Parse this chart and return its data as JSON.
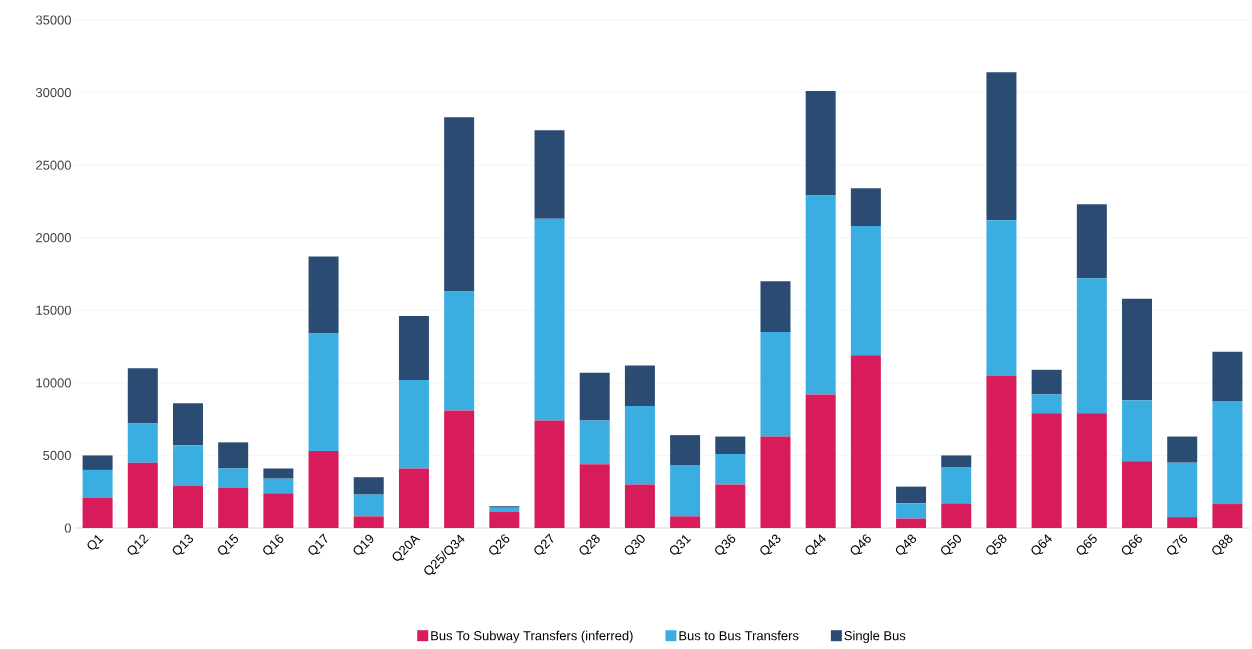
{
  "chart_data": {
    "type": "bar",
    "stacked": true,
    "categories": [
      "Q1",
      "Q12",
      "Q13",
      "Q15",
      "Q16",
      "Q17",
      "Q19",
      "Q20A",
      "Q25/Q34",
      "Q26",
      "Q27",
      "Q28",
      "Q30",
      "Q31",
      "Q36",
      "Q43",
      "Q44",
      "Q46",
      "Q48",
      "Q50",
      "Q58",
      "Q64",
      "Q65",
      "Q66",
      "Q76",
      "Q88"
    ],
    "series": [
      {
        "name": "Bus To Subway Transfers (inferred)",
        "color": "#d81b5a",
        "values": [
          2100,
          4500,
          2900,
          2750,
          2400,
          5300,
          800,
          4100,
          8100,
          1100,
          7400,
          4400,
          3000,
          800,
          3000,
          6300,
          9200,
          11900,
          650,
          1700,
          10500,
          7900,
          7900,
          4600,
          750,
          1650
        ]
      },
      {
        "name": "Bus to Bus Transfers",
        "color": "#3aaee0",
        "values": [
          1900,
          2700,
          2800,
          1350,
          1000,
          8100,
          1500,
          6100,
          8200,
          300,
          13900,
          3000,
          5400,
          3500,
          2100,
          7200,
          13700,
          8900,
          1050,
          2500,
          10700,
          1300,
          9300,
          4200,
          3750,
          7100
        ]
      },
      {
        "name": "Single Bus",
        "color": "#2b4c72",
        "values": [
          1000,
          3800,
          2900,
          1800,
          700,
          5300,
          1200,
          4400,
          12000,
          100,
          6100,
          3300,
          2800,
          2100,
          1200,
          3500,
          7200,
          2600,
          1150,
          800,
          10200,
          1700,
          5100,
          7000,
          1800,
          3400
        ]
      }
    ],
    "ylim": [
      0,
      35000
    ],
    "yticks": [
      0,
      5000,
      10000,
      15000,
      20000,
      25000,
      30000,
      35000
    ],
    "grid": "y",
    "legend": "bottom"
  }
}
